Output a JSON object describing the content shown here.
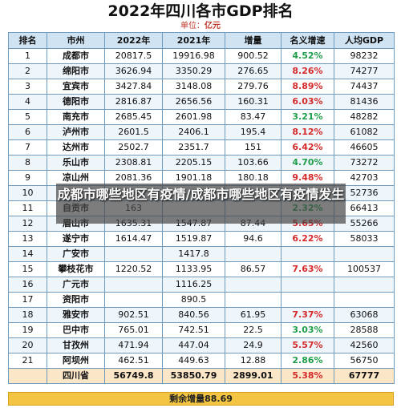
{
  "header": {
    "title": "2022年四川各市GDP排名",
    "subtitle_prefix": "单位：",
    "subtitle_unit": "亿元"
  },
  "table": {
    "columns": [
      "排名",
      "市州",
      "2022年",
      "2021年",
      "增量",
      "名义增速",
      "人均GDP"
    ],
    "rows": [
      {
        "rank": "1",
        "city": "成都市",
        "y2022": "20817.5",
        "y2021": "19916.98",
        "inc": "900.52",
        "rate": "4.52%",
        "rate_dir": "pos",
        "pc": "98232"
      },
      {
        "rank": "2",
        "city": "绵阳市",
        "y2022": "3626.94",
        "y2021": "3350.29",
        "inc": "276.65",
        "rate": "8.26%",
        "rate_dir": "neg",
        "pc": "74277"
      },
      {
        "rank": "3",
        "city": "宜宾市",
        "y2022": "3427.84",
        "y2021": "3148.08",
        "inc": "279.76",
        "rate": "8.89%",
        "rate_dir": "neg",
        "pc": "74437"
      },
      {
        "rank": "4",
        "city": "德阳市",
        "y2022": "2816.87",
        "y2021": "2656.56",
        "inc": "160.31",
        "rate": "6.03%",
        "rate_dir": "neg",
        "pc": "81436"
      },
      {
        "rank": "5",
        "city": "南充市",
        "y2022": "2685.45",
        "y2021": "2601.98",
        "inc": "83.47",
        "rate": "3.21%",
        "rate_dir": "pos",
        "pc": "48282"
      },
      {
        "rank": "6",
        "city": "泸州市",
        "y2022": "2601.5",
        "y2021": "2406.1",
        "inc": "195.4",
        "rate": "8.12%",
        "rate_dir": "neg",
        "pc": "61082"
      },
      {
        "rank": "7",
        "city": "达州市",
        "y2022": "2502.7",
        "y2021": "2351.7",
        "inc": "151",
        "rate": "6.42%",
        "rate_dir": "neg",
        "pc": "46605"
      },
      {
        "rank": "8",
        "city": "乐山市",
        "y2022": "2308.81",
        "y2021": "2205.15",
        "inc": "103.66",
        "rate": "4.70%",
        "rate_dir": "pos",
        "pc": "73272"
      },
      {
        "rank": "9",
        "city": "凉山州",
        "y2022": "2081.36",
        "y2021": "1901.18",
        "inc": "180.18",
        "rate": "9.48%",
        "rate_dir": "neg",
        "pc": "42703"
      },
      {
        "rank": "10",
        "city": "",
        "y2022": "",
        "y2021": "",
        "inc": "",
        "rate": "",
        "rate_dir": "pos",
        "pc": "52736"
      },
      {
        "rank": "11",
        "city": "自贡市",
        "y2022": "163",
        "y2021": "",
        "inc": "",
        "rate": "2.32%",
        "rate_dir": "pos",
        "pc": "66413"
      },
      {
        "rank": "12",
        "city": "眉山市",
        "y2022": "1635.31",
        "y2021": "1547.87",
        "inc": "87.44",
        "rate": "5.65%",
        "rate_dir": "neg",
        "pc": "55266"
      },
      {
        "rank": "13",
        "city": "遂宁市",
        "y2022": "1614.47",
        "y2021": "1519.87",
        "inc": "94.6",
        "rate": "6.22%",
        "rate_dir": "neg",
        "pc": "58033"
      },
      {
        "rank": "14",
        "city": "广安市",
        "y2022": "",
        "y2021": "1417.8",
        "inc": "",
        "rate": "",
        "rate_dir": "pos",
        "pc": ""
      },
      {
        "rank": "15",
        "city": "攀枝花市",
        "y2022": "1220.52",
        "y2021": "1133.95",
        "inc": "86.57",
        "rate": "7.63%",
        "rate_dir": "neg",
        "pc": "100537"
      },
      {
        "rank": "16",
        "city": "广元市",
        "y2022": "",
        "y2021": "1116.25",
        "inc": "",
        "rate": "",
        "rate_dir": "pos",
        "pc": ""
      },
      {
        "rank": "17",
        "city": "资阳市",
        "y2022": "",
        "y2021": "890.5",
        "inc": "",
        "rate": "",
        "rate_dir": "pos",
        "pc": ""
      },
      {
        "rank": "18",
        "city": "雅安市",
        "y2022": "902.51",
        "y2021": "840.56",
        "inc": "61.95",
        "rate": "7.37%",
        "rate_dir": "neg",
        "pc": "63068"
      },
      {
        "rank": "19",
        "city": "巴中市",
        "y2022": "765.01",
        "y2021": "742.51",
        "inc": "22.5",
        "rate": "3.03%",
        "rate_dir": "pos",
        "pc": "28588"
      },
      {
        "rank": "20",
        "city": "甘孜州",
        "y2022": "471.94",
        "y2021": "447.04",
        "inc": "24.9",
        "rate": "5.57%",
        "rate_dir": "neg",
        "pc": "42560"
      },
      {
        "rank": "21",
        "city": "阿坝州",
        "y2022": "462.51",
        "y2021": "449.63",
        "inc": "12.88",
        "rate": "2.86%",
        "rate_dir": "pos",
        "pc": "56750"
      }
    ],
    "total": {
      "rank": "",
      "city": "四川省",
      "y2022": "56749.8",
      "y2021": "53850.79",
      "inc": "2899.01",
      "rate": "5.38%",
      "rate_dir": "neg",
      "pc": "67777"
    }
  },
  "remaining": "剩余增量88.69",
  "overlay": {
    "text": "成都市哪些地区有疫情/成都市哪些地区有疫情发生"
  },
  "colors": {
    "header_bg": "#cfe3f3",
    "rate_up": "#1e9e4a",
    "rate_down": "#d42a2a",
    "remaining_bg": "#f4c542"
  }
}
